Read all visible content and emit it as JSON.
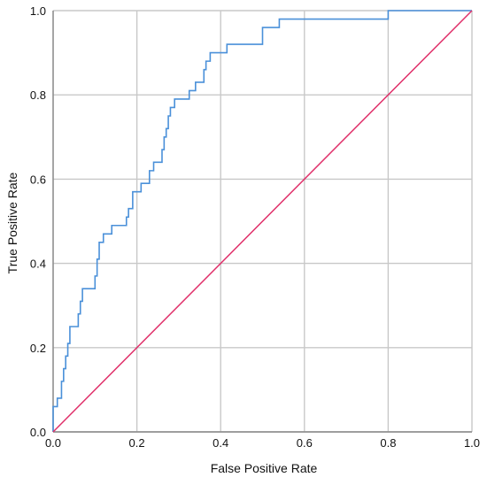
{
  "chart_data": {
    "type": "line",
    "title": "",
    "xlabel": "False Positive Rate",
    "ylabel": "True Positive Rate",
    "xlim": [
      0,
      1
    ],
    "ylim": [
      0,
      1
    ],
    "xticks": [
      "0.0",
      "0.2",
      "0.4",
      "0.6",
      "0.8",
      "1.0"
    ],
    "yticks": [
      "0.0",
      "0.2",
      "0.4",
      "0.6",
      "0.8",
      "1.0"
    ],
    "grid": true,
    "legend": "none",
    "series": [
      {
        "color": "#4a90d9",
        "x": [
          0.0,
          0.0,
          0.01,
          0.01,
          0.02,
          0.02,
          0.025,
          0.025,
          0.03,
          0.03,
          0.035,
          0.035,
          0.04,
          0.04,
          0.06,
          0.06,
          0.065,
          0.065,
          0.07,
          0.07,
          0.1,
          0.1,
          0.105,
          0.105,
          0.11,
          0.11,
          0.12,
          0.12,
          0.14,
          0.14,
          0.175,
          0.175,
          0.18,
          0.18,
          0.19,
          0.19,
          0.21,
          0.21,
          0.23,
          0.23,
          0.24,
          0.24,
          0.26,
          0.26,
          0.265,
          0.265,
          0.27,
          0.27,
          0.275,
          0.275,
          0.28,
          0.28,
          0.29,
          0.29,
          0.325,
          0.325,
          0.34,
          0.34,
          0.36,
          0.36,
          0.365,
          0.365,
          0.375,
          0.375,
          0.415,
          0.415,
          0.5,
          0.5,
          0.54,
          0.54,
          0.8,
          0.8,
          1.0
        ],
        "y": [
          0.0,
          0.06,
          0.06,
          0.08,
          0.08,
          0.12,
          0.12,
          0.15,
          0.15,
          0.18,
          0.18,
          0.21,
          0.21,
          0.25,
          0.25,
          0.28,
          0.28,
          0.31,
          0.31,
          0.34,
          0.34,
          0.37,
          0.37,
          0.41,
          0.41,
          0.45,
          0.45,
          0.47,
          0.47,
          0.49,
          0.49,
          0.51,
          0.51,
          0.53,
          0.53,
          0.57,
          0.57,
          0.59,
          0.59,
          0.62,
          0.62,
          0.64,
          0.64,
          0.67,
          0.67,
          0.7,
          0.7,
          0.72,
          0.72,
          0.75,
          0.75,
          0.77,
          0.77,
          0.79,
          0.79,
          0.81,
          0.81,
          0.83,
          0.83,
          0.86,
          0.86,
          0.88,
          0.88,
          0.9,
          0.9,
          0.92,
          0.92,
          0.96,
          0.96,
          0.98,
          0.98,
          1.0,
          1.0
        ]
      },
      {
        "color": "#e0306a",
        "x": [
          0.0,
          1.0
        ],
        "y": [
          0.0,
          1.0
        ]
      }
    ]
  }
}
